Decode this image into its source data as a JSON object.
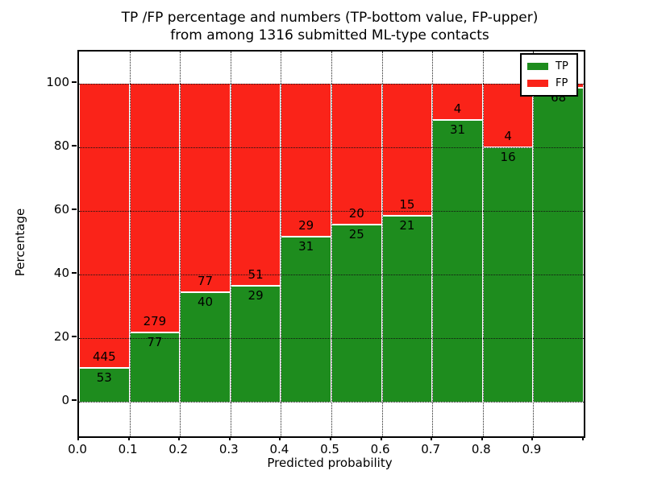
{
  "figure": {
    "title_line1": "TP /FP percentage and numbers (TP-bottom value, FP-upper)",
    "title_line2": "from among 1316 submitted ML-type contacts",
    "total_contacts": "1316"
  },
  "chart_data": {
    "type": "bar",
    "stacked": true,
    "title": "TP /FP percentage and numbers (TP-bottom value, FP-upper) from among 1316 submitted ML-type contacts",
    "xlabel": "Predicted probability",
    "ylabel": "Percentage",
    "bin_width": 0.1,
    "bin_starts": [
      0.0,
      0.1,
      0.2,
      0.3,
      0.4,
      0.5,
      0.6,
      0.7,
      0.8,
      0.9
    ],
    "x_tick_labels": [
      "0.0",
      "0.1",
      "0.2",
      "0.3",
      "0.4",
      "0.5",
      "0.6",
      "0.7",
      "0.8",
      "0.9"
    ],
    "y_ticks": [
      0,
      20,
      40,
      60,
      80,
      100
    ],
    "y_tick_labels": [
      "0",
      "20",
      "40",
      "60",
      "80",
      "100"
    ],
    "xlim": [
      0,
      1
    ],
    "ylim": [
      -11,
      110
    ],
    "grid": "dotted",
    "series": [
      {
        "name": "TP",
        "color": "#1e8c1e",
        "counts": [
          53,
          77,
          40,
          29,
          31,
          25,
          21,
          31,
          16,
          68
        ],
        "labels": [
          "53",
          "77",
          "40",
          "29",
          "31",
          "25",
          "21",
          "31",
          "16",
          "68"
        ],
        "percent": [
          10.64,
          21.63,
          34.19,
          36.25,
          51.67,
          55.56,
          58.33,
          88.57,
          80.0,
          98.55
        ]
      },
      {
        "name": "FP",
        "color": "#fa2319",
        "counts": [
          445,
          279,
          77,
          51,
          29,
          20,
          15,
          4,
          4,
          null
        ],
        "labels": [
          "445",
          "279",
          "77",
          "51",
          "29",
          "20",
          "15",
          "4",
          "4",
          ""
        ],
        "percent": [
          89.36,
          78.37,
          65.81,
          63.75,
          48.33,
          44.44,
          41.67,
          11.43,
          20.0,
          1.45
        ]
      }
    ],
    "legend": {
      "position": "upper right",
      "entries": [
        {
          "label": "TP",
          "color": "#1e8c1e"
        },
        {
          "label": "FP",
          "color": "#fa2319"
        }
      ]
    }
  }
}
